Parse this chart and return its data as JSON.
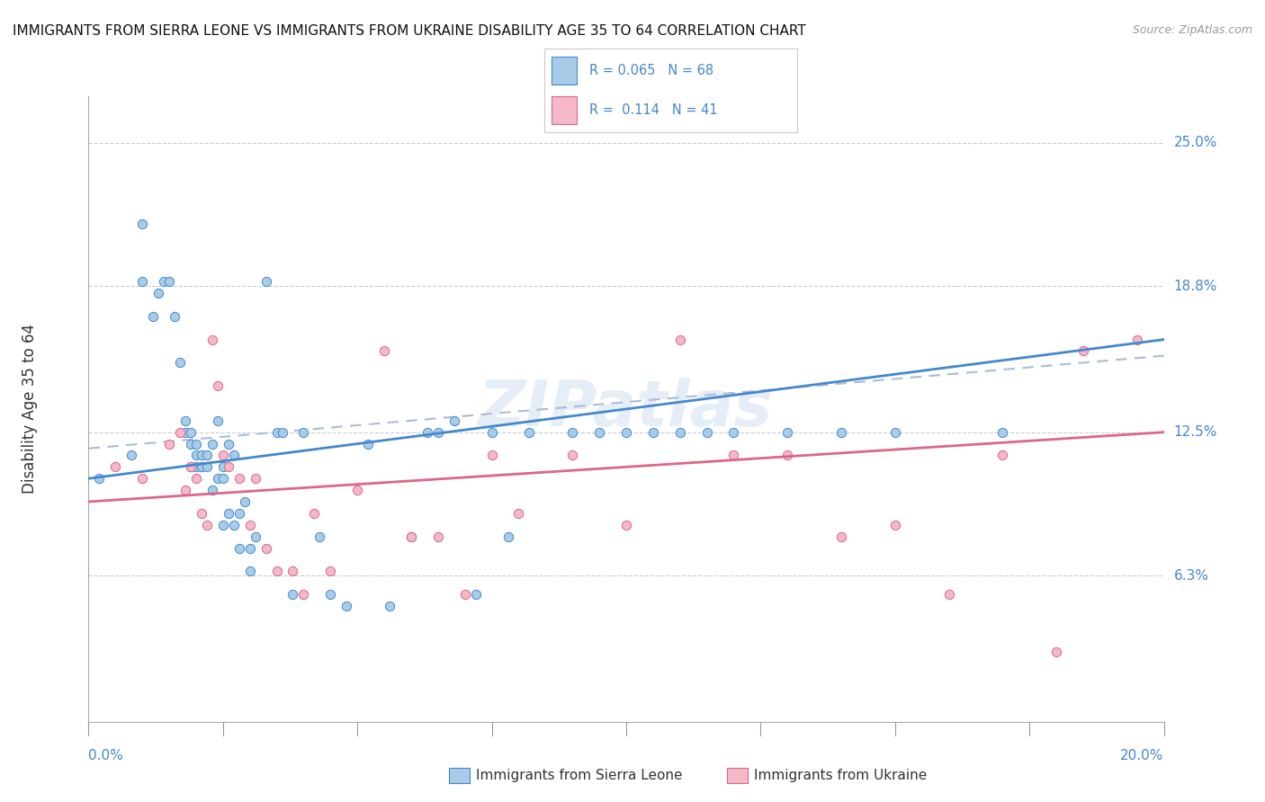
{
  "title": "IMMIGRANTS FROM SIERRA LEONE VS IMMIGRANTS FROM UKRAINE DISABILITY AGE 35 TO 64 CORRELATION CHART",
  "source": "Source: ZipAtlas.com",
  "ylabel": "Disability Age 35 to 64",
  "ytick_labels": [
    "6.3%",
    "12.5%",
    "18.8%",
    "25.0%"
  ],
  "ytick_values": [
    0.063,
    0.125,
    0.188,
    0.25
  ],
  "xlim": [
    0.0,
    0.2
  ],
  "ylim": [
    0.0,
    0.27
  ],
  "color_sierra": "#a8cce8",
  "color_ukraine": "#f4b8c8",
  "color_line_sierra": "#4488cc",
  "color_line_ukraine": "#dd6688",
  "color_dashed": "#aabbd8",
  "sierra_leone_x": [
    0.002,
    0.008,
    0.01,
    0.01,
    0.012,
    0.013,
    0.014,
    0.015,
    0.016,
    0.017,
    0.018,
    0.018,
    0.019,
    0.019,
    0.019,
    0.02,
    0.02,
    0.02,
    0.021,
    0.021,
    0.022,
    0.022,
    0.023,
    0.023,
    0.024,
    0.024,
    0.025,
    0.025,
    0.025,
    0.026,
    0.026,
    0.027,
    0.027,
    0.028,
    0.028,
    0.029,
    0.03,
    0.03,
    0.031,
    0.033,
    0.035,
    0.036,
    0.038,
    0.04,
    0.043,
    0.045,
    0.048,
    0.052,
    0.056,
    0.06,
    0.063,
    0.065,
    0.068,
    0.072,
    0.075,
    0.078,
    0.082,
    0.09,
    0.095,
    0.1,
    0.105,
    0.11,
    0.115,
    0.12,
    0.13,
    0.14,
    0.15,
    0.17
  ],
  "sierra_leone_y": [
    0.105,
    0.115,
    0.215,
    0.19,
    0.175,
    0.185,
    0.19,
    0.19,
    0.175,
    0.155,
    0.13,
    0.125,
    0.125,
    0.12,
    0.11,
    0.12,
    0.115,
    0.11,
    0.115,
    0.11,
    0.11,
    0.115,
    0.1,
    0.12,
    0.105,
    0.13,
    0.11,
    0.105,
    0.085,
    0.09,
    0.12,
    0.085,
    0.115,
    0.09,
    0.075,
    0.095,
    0.075,
    0.065,
    0.08,
    0.19,
    0.125,
    0.125,
    0.055,
    0.125,
    0.08,
    0.055,
    0.05,
    0.12,
    0.05,
    0.08,
    0.125,
    0.125,
    0.13,
    0.055,
    0.125,
    0.08,
    0.125,
    0.125,
    0.125,
    0.125,
    0.125,
    0.125,
    0.125,
    0.125,
    0.125,
    0.125,
    0.125,
    0.125
  ],
  "ukraine_x": [
    0.005,
    0.01,
    0.015,
    0.017,
    0.018,
    0.019,
    0.02,
    0.021,
    0.022,
    0.023,
    0.024,
    0.025,
    0.026,
    0.028,
    0.03,
    0.031,
    0.033,
    0.035,
    0.038,
    0.04,
    0.042,
    0.045,
    0.05,
    0.055,
    0.06,
    0.065,
    0.07,
    0.075,
    0.08,
    0.09,
    0.1,
    0.11,
    0.12,
    0.13,
    0.14,
    0.15,
    0.16,
    0.17,
    0.18,
    0.185,
    0.195
  ],
  "ukraine_y": [
    0.11,
    0.105,
    0.12,
    0.125,
    0.1,
    0.11,
    0.105,
    0.09,
    0.085,
    0.165,
    0.145,
    0.115,
    0.11,
    0.105,
    0.085,
    0.105,
    0.075,
    0.065,
    0.065,
    0.055,
    0.09,
    0.065,
    0.1,
    0.16,
    0.08,
    0.08,
    0.055,
    0.115,
    0.09,
    0.115,
    0.085,
    0.165,
    0.115,
    0.115,
    0.08,
    0.085,
    0.055,
    0.115,
    0.03,
    0.16,
    0.165
  ]
}
